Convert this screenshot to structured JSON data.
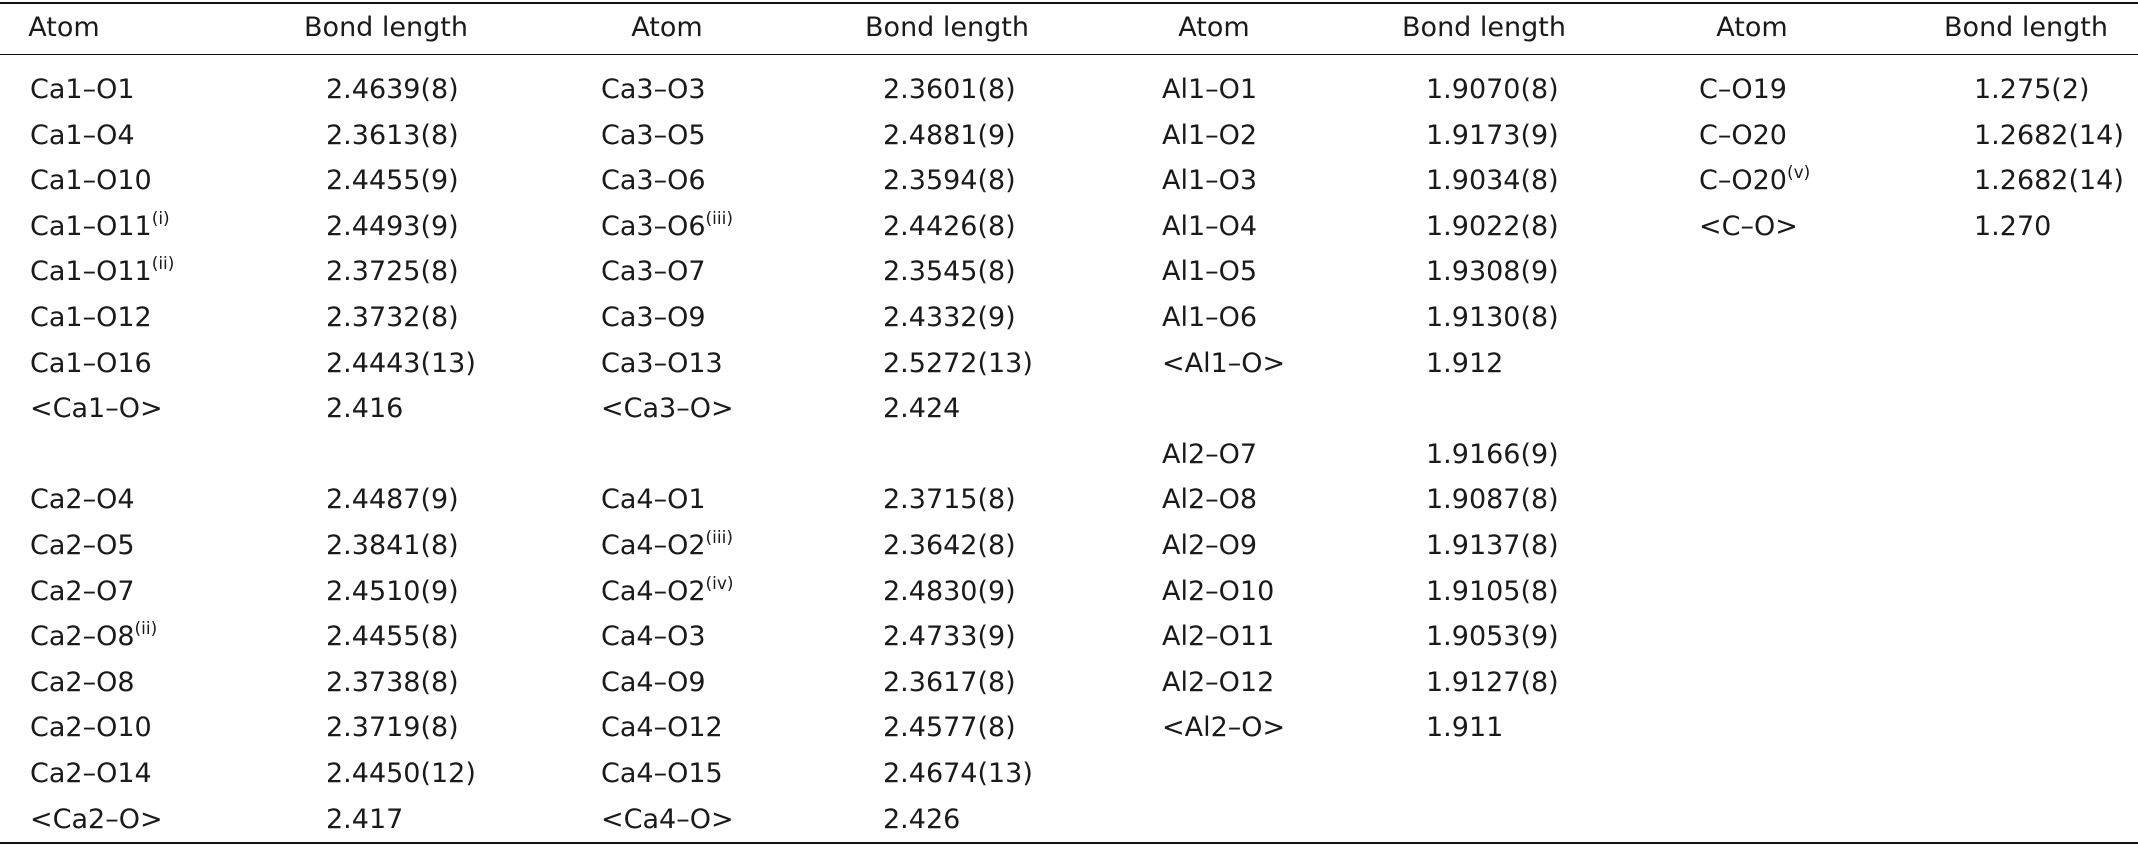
{
  "headers": [
    "Atom",
    "Bond length",
    "Atom",
    "Bond length",
    "Atom",
    "Bond length",
    "Atom",
    "Bond length"
  ],
  "columns": [
    {
      "rows": [
        {
          "atom": "Ca1–O1",
          "sup": "",
          "length": "2.4639(8)"
        },
        {
          "atom": "Ca1–O4",
          "sup": "",
          "length": "2.3613(8)"
        },
        {
          "atom": "Ca1–O10",
          "sup": "",
          "length": "2.4455(9)"
        },
        {
          "atom": "Ca1–O11",
          "sup": "(i)",
          "length": "2.4493(9)"
        },
        {
          "atom": "Ca1–O11",
          "sup": "(ii)",
          "length": "2.3725(8)"
        },
        {
          "atom": "Ca1–O12",
          "sup": "",
          "length": "2.3732(8)"
        },
        {
          "atom": "Ca1–O16",
          "sup": "",
          "length": "2.4443(13)"
        },
        {
          "atom": "<Ca1–O>",
          "sup": "",
          "length": "2.416"
        },
        {
          "atom": "",
          "sup": "",
          "length": ""
        },
        {
          "atom": "Ca2–O4",
          "sup": "",
          "length": "2.4487(9)"
        },
        {
          "atom": "Ca2–O5",
          "sup": "",
          "length": "2.3841(8)"
        },
        {
          "atom": "Ca2–O7",
          "sup": "",
          "length": "2.4510(9)"
        },
        {
          "atom": "Ca2–O8",
          "sup": "(ii)",
          "length": "2.4455(8)"
        },
        {
          "atom": "Ca2–O8",
          "sup": "",
          "length": "2.3738(8)"
        },
        {
          "atom": "Ca2–O10",
          "sup": "",
          "length": "2.3719(8)"
        },
        {
          "atom": "Ca2–O14",
          "sup": "",
          "length": "2.4450(12)"
        },
        {
          "atom": "<Ca2–O>",
          "sup": "",
          "length": "2.417"
        }
      ]
    },
    {
      "rows": [
        {
          "atom": "Ca3–O3",
          "sup": "",
          "length": "2.3601(8)"
        },
        {
          "atom": "Ca3–O5",
          "sup": "",
          "length": "2.4881(9)"
        },
        {
          "atom": "Ca3–O6",
          "sup": "",
          "length": "2.3594(8)"
        },
        {
          "atom": "Ca3–O6",
          "sup": "(iii)",
          "length": "2.4426(8)"
        },
        {
          "atom": "Ca3–O7",
          "sup": "",
          "length": "2.3545(8)"
        },
        {
          "atom": "Ca3–O9",
          "sup": "",
          "length": "2.4332(9)"
        },
        {
          "atom": "Ca3–O13",
          "sup": "",
          "length": "2.5272(13)"
        },
        {
          "atom": "<Ca3–O>",
          "sup": "",
          "length": "2.424"
        },
        {
          "atom": "",
          "sup": "",
          "length": ""
        },
        {
          "atom": "Ca4–O1",
          "sup": "",
          "length": "2.3715(8)"
        },
        {
          "atom": "Ca4–O2",
          "sup": "(iii)",
          "length": "2.3642(8)"
        },
        {
          "atom": "Ca4–O2",
          "sup": "(iv)",
          "length": "2.4830(9)"
        },
        {
          "atom": "Ca4–O3",
          "sup": "",
          "length": "2.4733(9)"
        },
        {
          "atom": "Ca4–O9",
          "sup": "",
          "length": "2.3617(8)"
        },
        {
          "atom": "Ca4–O12",
          "sup": "",
          "length": "2.4577(8)"
        },
        {
          "atom": "Ca4–O15",
          "sup": "",
          "length": "2.4674(13)"
        },
        {
          "atom": "<Ca4–O>",
          "sup": "",
          "length": "2.426"
        }
      ]
    },
    {
      "rows": [
        {
          "atom": "Al1–O1",
          "sup": "",
          "length": "1.9070(8)"
        },
        {
          "atom": "Al1–O2",
          "sup": "",
          "length": "1.9173(9)"
        },
        {
          "atom": "Al1–O3",
          "sup": "",
          "length": "1.9034(8)"
        },
        {
          "atom": "Al1–O4",
          "sup": "",
          "length": "1.9022(8)"
        },
        {
          "atom": "Al1–O5",
          "sup": "",
          "length": "1.9308(9)"
        },
        {
          "atom": "Al1–O6",
          "sup": "",
          "length": "1.9130(8)"
        },
        {
          "atom": "<Al1–O>",
          "sup": "",
          "length": "1.912"
        },
        {
          "atom": "",
          "sup": "",
          "length": ""
        },
        {
          "atom": "Al2–O7",
          "sup": "",
          "length": "1.9166(9)"
        },
        {
          "atom": "Al2–O8",
          "sup": "",
          "length": "1.9087(8)"
        },
        {
          "atom": "Al2–O9",
          "sup": "",
          "length": "1.9137(8)"
        },
        {
          "atom": "Al2–O10",
          "sup": "",
          "length": "1.9105(8)"
        },
        {
          "atom": "Al2–O11",
          "sup": "",
          "length": "1.9053(9)"
        },
        {
          "atom": "Al2–O12",
          "sup": "",
          "length": "1.9127(8)"
        },
        {
          "atom": "<Al2–O>",
          "sup": "",
          "length": "1.911"
        }
      ]
    },
    {
      "rows": [
        {
          "atom": "C–O19",
          "sup": "",
          "length": "1.275(2)"
        },
        {
          "atom": "C–O20",
          "sup": "",
          "length": "1.2682(14)"
        },
        {
          "atom": "C–O20",
          "sup": "(v)",
          "length": "1.2682(14)"
        },
        {
          "atom": "<C–O>",
          "sup": "",
          "length": "1.270"
        }
      ]
    }
  ]
}
